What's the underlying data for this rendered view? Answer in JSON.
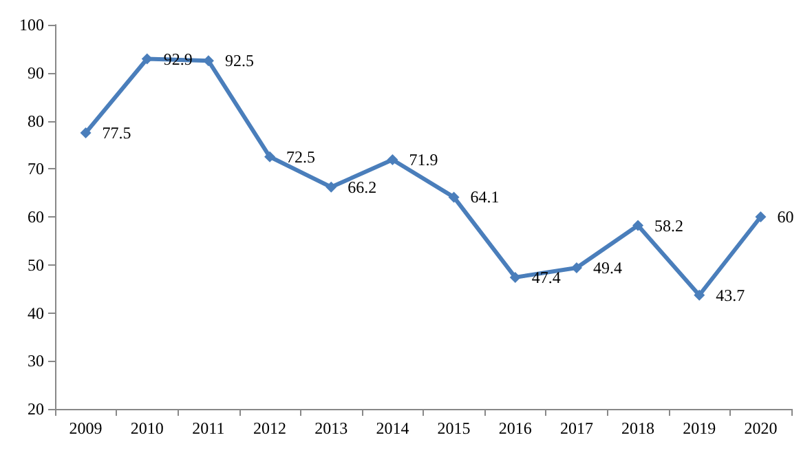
{
  "chart_data": {
    "type": "line",
    "categories": [
      "2009",
      "2010",
      "2011",
      "2012",
      "2013",
      "2014",
      "2015",
      "2016",
      "2017",
      "2018",
      "2019",
      "2020"
    ],
    "series": [
      {
        "color": "#4a7ebb",
        "values": [
          77.5,
          92.9,
          92.5,
          72.5,
          66.2,
          71.9,
          64.1,
          47.4,
          49.4,
          58.2,
          43.7,
          60
        ]
      }
    ],
    "ylim": [
      20,
      100
    ],
    "yticks": [
      20,
      30,
      40,
      50,
      60,
      70,
      80,
      90,
      100
    ],
    "grid": false,
    "marker": "diamond",
    "line_style": "solid",
    "data_labels": true
  }
}
